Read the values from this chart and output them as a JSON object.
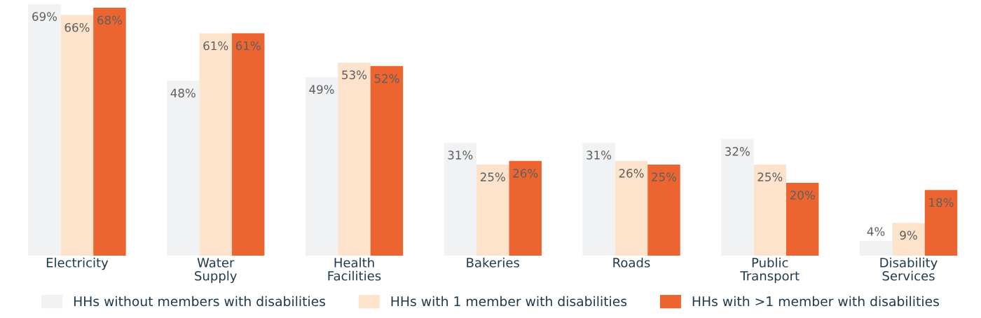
{
  "chart_data": {
    "type": "bar",
    "categories": [
      "Electricity",
      "Water Supply",
      "Health Facilities",
      "Bakeries",
      "Roads",
      "Public Transport",
      "Disability Services"
    ],
    "series": [
      {
        "name": "HHs without members with disabilities",
        "color": "#f0f2f4",
        "values": [
          69,
          48,
          49,
          31,
          31,
          32,
          4
        ],
        "value_labels": [
          "69%",
          "48%",
          "49%",
          "31%",
          "31%",
          "32%",
          "4%"
        ]
      },
      {
        "name": "HHs with 1 member with disabilities",
        "color": "#fde3cc",
        "values": [
          66,
          61,
          53,
          25,
          26,
          25,
          9
        ],
        "value_labels": [
          "66%",
          "61%",
          "53%",
          "25%",
          "26%",
          "25%",
          "9%"
        ]
      },
      {
        "name": "HHs with >1 member with disabilities",
        "color": "#ec6530",
        "values": [
          68,
          61,
          52,
          26,
          25,
          20,
          18
        ],
        "value_labels": [
          "68%",
          "61%",
          "52%",
          "26%",
          "25%",
          "20%",
          "18%"
        ]
      }
    ],
    "legend": "bottom",
    "grid": false
  }
}
